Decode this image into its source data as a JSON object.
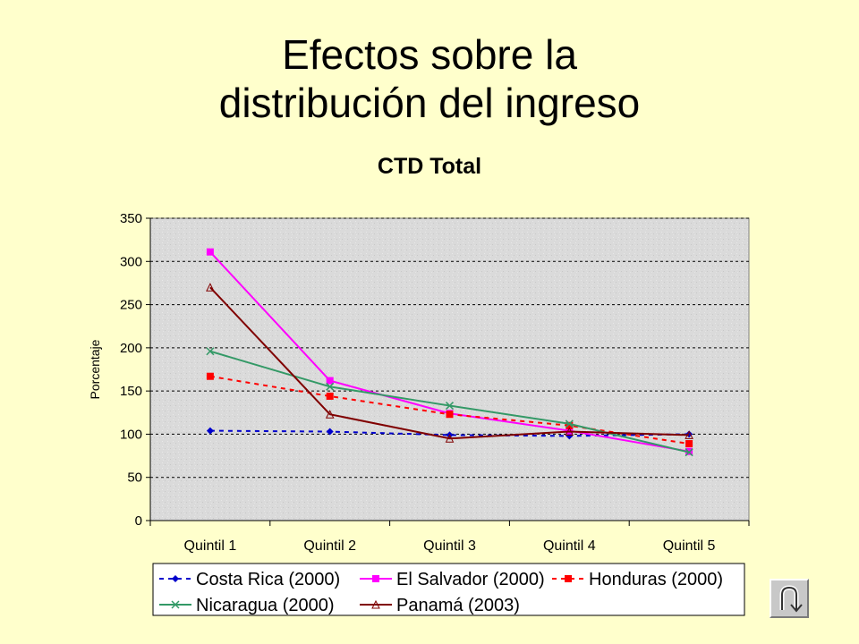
{
  "slide": {
    "title_line1": "Efectos sobre la",
    "title_line2": "distribución del ingreso"
  },
  "chart_data": {
    "type": "line",
    "title": "CTD Total",
    "xlabel": "",
    "ylabel": "Porcentaje",
    "ylim": [
      0,
      350
    ],
    "yticks": [
      0,
      50,
      100,
      150,
      200,
      250,
      300,
      350
    ],
    "grid": true,
    "legend_position": "bottom",
    "categories": [
      "Quintil 1",
      "Quintil 2",
      "Quintil 3",
      "Quintil 4",
      "Quintil 5"
    ],
    "series": [
      {
        "name": "Costa Rica (2000)",
        "values": [
          104,
          103,
          99,
          98,
          100
        ],
        "color": "#0000CC",
        "dash": true,
        "marker": "diamond"
      },
      {
        "name": "El Salvador (2000)",
        "values": [
          311,
          162,
          124,
          104,
          80
        ],
        "color": "#FF00FF",
        "dash": false,
        "marker": "square"
      },
      {
        "name": "Honduras (2000)",
        "values": [
          167,
          144,
          123,
          110,
          89
        ],
        "color": "#FF0000",
        "dash": true,
        "marker": "square"
      },
      {
        "name": "Nicaragua (2000)",
        "values": [
          196,
          155,
          133,
          112,
          79
        ],
        "color": "#339966",
        "dash": false,
        "marker": "x"
      },
      {
        "name": "Panamá (2003)",
        "values": [
          270,
          123,
          95,
          103,
          99
        ],
        "color": "#800000",
        "dash": false,
        "marker": "triangle"
      }
    ]
  },
  "nav": {
    "return_icon": "u-turn-return-icon"
  }
}
